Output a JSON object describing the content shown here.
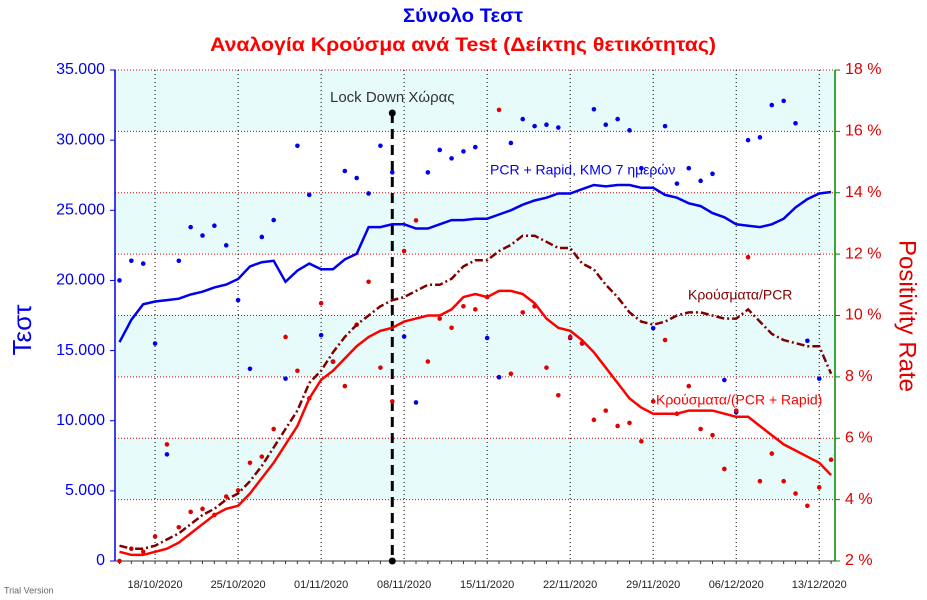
{
  "chart_data": {
    "type": "line",
    "title": "Σύνολο Τεστ",
    "subtitle": "Αναλογία Κρούσμα ανά Test (Δείκτης θετικότητας)",
    "y_label": "Τεστ",
    "y2_label": "Positivity Rate",
    "footer": "Trial Version",
    "categories": [
      null,
      null,
      null,
      "18/10/2020",
      null,
      null,
      null,
      null,
      null,
      null,
      "25/10/2020",
      null,
      null,
      null,
      null,
      null,
      null,
      "01/11/2020",
      null,
      null,
      null,
      null,
      null,
      null,
      "08/11/2020",
      null,
      null,
      null,
      null,
      null,
      null,
      "15/11/2020",
      null,
      null,
      null,
      null,
      null,
      null,
      "22/11/2020",
      null,
      null,
      null,
      null,
      null,
      null,
      "29/11/2020",
      null,
      null,
      null,
      null,
      null,
      null,
      "06/12/2020",
      null,
      null,
      null,
      null,
      null,
      null,
      "13/12/2020",
      null
    ],
    "ylim": [
      0,
      35000
    ],
    "yticks": [
      0,
      {
        "value": 5000,
        "label": "5.000"
      },
      {
        "value": 10000,
        "label": "10.000"
      },
      {
        "value": 15000,
        "label": "15.000"
      },
      {
        "value": 20000,
        "label": "20.000"
      },
      {
        "value": 25000,
        "label": "25.000"
      },
      {
        "value": 30000,
        "label": "30.000"
      },
      {
        "value": 35000,
        "label": "35.000"
      }
    ],
    "y2lim": [
      2,
      18
    ],
    "y2ticks": [
      {
        "value": 2,
        "label": "2 %"
      },
      {
        "value": 4,
        "label": "4 %"
      },
      {
        "value": 6,
        "label": "6 %"
      },
      {
        "value": 8,
        "label": "8 %"
      },
      {
        "value": 10,
        "label": "10 %"
      },
      {
        "value": 12,
        "label": "12 %"
      },
      {
        "value": 14,
        "label": "14 %"
      },
      {
        "value": 16,
        "label": "16 %"
      },
      {
        "value": 18,
        "label": "18 %"
      }
    ],
    "annotations": [
      {
        "text": "Lock Down Χώρας",
        "x": 23
      }
    ],
    "series": [
      {
        "style": "dots",
        "color": "#0000ee",
        "axis": "y",
        "values": [
          20000,
          21400,
          21200,
          15500,
          7600,
          21400,
          23800,
          23200,
          23900,
          22500,
          18600,
          13700,
          23100,
          24300,
          13000,
          29600,
          26100,
          16100,
          14200,
          27800,
          27300,
          26200,
          29600,
          27700,
          16000,
          11300,
          27700,
          29300,
          28700,
          29200,
          29500,
          15900,
          13100,
          29800,
          31500,
          31000,
          31100,
          30900,
          15900,
          15500,
          32200,
          31100,
          31500,
          30700,
          28000,
          16600,
          31000,
          26900,
          28000,
          27100,
          27600,
          12900,
          10600,
          30000,
          30200,
          32500,
          32800,
          31200,
          15700,
          13000,
          null
        ]
      },
      {
        "name": "PCR + Rapid, ΚΜΟ 7 ημερών",
        "style": "line",
        "color": "#0000ee",
        "axis": "y",
        "values": [
          15600,
          17200,
          18300,
          18500,
          18600,
          18700,
          19000,
          19200,
          19500,
          19700,
          20100,
          21000,
          21300,
          21400,
          19900,
          20700,
          21200,
          20800,
          20800,
          21500,
          21900,
          23800,
          23800,
          24000,
          24000,
          23700,
          23700,
          24000,
          24300,
          24300,
          24400,
          24400,
          24700,
          25000,
          25400,
          25700,
          25900,
          26200,
          26200,
          26500,
          26800,
          26700,
          26800,
          26800,
          26600,
          26600,
          26100,
          25900,
          25500,
          25300,
          24800,
          24500,
          24000,
          23900,
          23800,
          24000,
          24400,
          25200,
          25800,
          26200,
          26300
        ]
      },
      {
        "style": "dots",
        "color": "#e00000",
        "axis": "y2",
        "values": [
          2.0,
          2.4,
          2.3,
          2.8,
          5.8,
          3.1,
          3.6,
          3.7,
          3.5,
          4.1,
          4.3,
          5.2,
          5.4,
          6.3,
          9.3,
          8.2,
          7.3,
          10.4,
          8.5,
          7.7,
          9.7,
          11.1,
          8.3,
          7.2,
          12.1,
          13.1,
          8.5,
          9.9,
          9.6,
          10.3,
          10.2,
          10.6,
          16.7,
          8.1,
          10.1,
          10.3,
          8.3,
          7.4,
          9.3,
          9.1,
          6.6,
          6.9,
          6.4,
          6.5,
          5.9,
          7.2,
          9.2,
          6.8,
          7.7,
          6.3,
          6.1,
          5.0,
          6.9,
          11.9,
          4.6,
          5.5,
          4.6,
          4.2,
          3.8,
          4.4,
          5.3
        ]
      },
      {
        "name": "Κρούσματα/PCR",
        "style": "dashdot",
        "color": "#800000",
        "axis": "y2",
        "values": [
          2.5,
          2.4,
          2.4,
          2.5,
          2.7,
          2.9,
          3.2,
          3.5,
          3.7,
          4.0,
          4.2,
          4.6,
          5.1,
          5.7,
          6.3,
          6.9,
          7.8,
          8.2,
          8.8,
          9.3,
          9.7,
          10.0,
          10.3,
          10.5,
          10.6,
          10.8,
          11.0,
          11.0,
          11.2,
          11.6,
          11.8,
          11.8,
          12.1,
          12.3,
          12.6,
          12.6,
          12.4,
          12.2,
          12.2,
          11.7,
          11.5,
          11.0,
          10.6,
          10.1,
          9.8,
          9.7,
          9.8,
          10.0,
          10.1,
          10.1,
          10.0,
          9.9,
          9.9,
          10.2,
          9.8,
          9.4,
          9.2,
          9.1,
          9.0,
          9.0,
          8.1
        ]
      },
      {
        "name": "Κρούσματα/(PCR + Rapid)",
        "style": "line",
        "color": "#ff0000",
        "axis": "y2",
        "values": [
          2.3,
          2.2,
          2.2,
          2.3,
          2.4,
          2.6,
          2.9,
          3.2,
          3.5,
          3.7,
          3.8,
          4.2,
          4.7,
          5.2,
          5.8,
          6.4,
          7.3,
          7.9,
          8.2,
          8.6,
          9.0,
          9.3,
          9.5,
          9.6,
          9.8,
          9.9,
          10.0,
          10.0,
          10.2,
          10.6,
          10.7,
          10.6,
          10.8,
          10.8,
          10.7,
          10.4,
          9.9,
          9.6,
          9.5,
          9.2,
          8.8,
          8.3,
          7.8,
          7.3,
          7.0,
          6.8,
          6.8,
          6.8,
          6.9,
          6.9,
          6.9,
          6.8,
          6.7,
          6.7,
          6.4,
          6.1,
          5.8,
          5.6,
          5.4,
          5.2,
          4.8
        ]
      }
    ]
  }
}
